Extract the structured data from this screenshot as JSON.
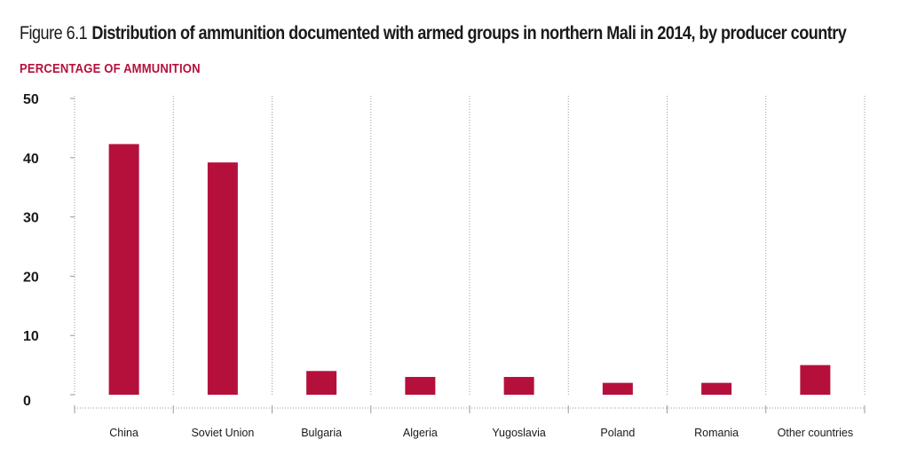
{
  "figure": {
    "label": "Figure 6.1",
    "title": "Distribution of ammunition documented with armed groups in northern Mali in 2014, by producer country"
  },
  "chart_data": {
    "type": "bar",
    "title": "Distribution of ammunition documented with armed groups in northern Mali in 2014, by producer country",
    "ylabel": "PERCENTAGE OF AMMUNITION",
    "xlabel": "",
    "categories": [
      "China",
      "Soviet Union",
      "Bulgaria",
      "Algeria",
      "Yugoslavia",
      "Poland",
      "Romania",
      "Other countries"
    ],
    "values": [
      42.3,
      39.2,
      4.0,
      3.0,
      3.0,
      2.0,
      2.0,
      5.0
    ],
    "ylim": [
      0,
      50
    ],
    "yticks": [
      0,
      10,
      20,
      30,
      40,
      50
    ],
    "grid": "vertical-dotted",
    "bar_color": "#b5103c",
    "legend": "none"
  }
}
